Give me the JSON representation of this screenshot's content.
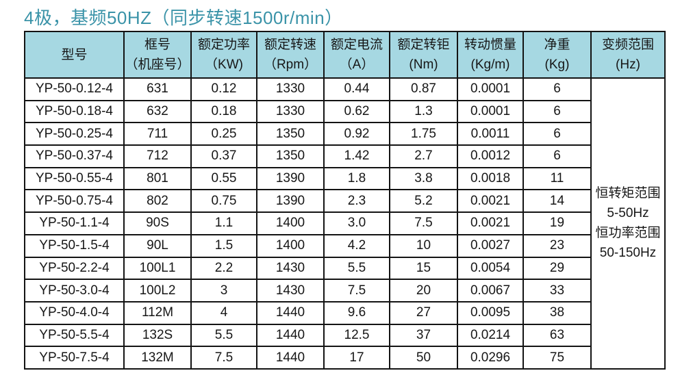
{
  "title": "4极，基频50HZ（同步转速1500r/min）",
  "colors": {
    "title_text": "#3a93a8",
    "header_bg": "#a6d8e2",
    "border": "#131313",
    "cell_text": "#161616"
  },
  "table": {
    "headers": [
      {
        "line1": "型号",
        "line2": ""
      },
      {
        "line1": "框号",
        "line2": "（机座号）"
      },
      {
        "line1": "额定功率",
        "line2": "（KW)"
      },
      {
        "line1": "额定转速",
        "line2": "（Rpm）"
      },
      {
        "line1": "额定电流",
        "line2": "（A）"
      },
      {
        "line1": "额定转钜",
        "line2": "(Nm)"
      },
      {
        "line1": "转动惯量",
        "line2": "(Kg/m)"
      },
      {
        "line1": "净重",
        "line2": "(Kg)"
      },
      {
        "line1": "变频范围",
        "line2": "(Hz)"
      }
    ],
    "rows": [
      [
        "YP-50-0.12-4",
        "631",
        "0.12",
        "1330",
        "0.44",
        "0.87",
        "0.0001",
        "6"
      ],
      [
        "YP-50-0.18-4",
        "632",
        "0.18",
        "1330",
        "0.62",
        "1.3",
        "0.0001",
        "6"
      ],
      [
        "YP-50-0.25-4",
        "711",
        "0.25",
        "1350",
        "0.92",
        "1.75",
        "0.0011",
        "6"
      ],
      [
        "YP-50-0.37-4",
        "712",
        "0.37",
        "1350",
        "1.42",
        "2.7",
        "0.0012",
        "6"
      ],
      [
        "YP-50-0.55-4",
        "801",
        "0.55",
        "1390",
        "1.8",
        "3.8",
        "0.0018",
        "11"
      ],
      [
        "YP-50-0.75-4",
        "802",
        "0.75",
        "1390",
        "2.3",
        "5.2",
        "0.0021",
        "14"
      ],
      [
        "YP-50-1.1-4",
        "90S",
        "1.1",
        "1400",
        "3.0",
        "7.5",
        "0.0021",
        "19"
      ],
      [
        "YP-50-1.5-4",
        "90L",
        "1.5",
        "1400",
        "4.2",
        "10",
        "0.0027",
        "23"
      ],
      [
        "YP-50-2.2-4",
        "100L1",
        "2.2",
        "1430",
        "5.5",
        "15",
        "0.0054",
        "29"
      ],
      [
        "YP-50-3.0-4",
        "100L2",
        "3",
        "1430",
        "7.5",
        "20",
        "0.0067",
        "33"
      ],
      [
        "YP-50-4.0-4",
        "112M",
        "4",
        "1440",
        "9.6",
        "27",
        "0.0095",
        "38"
      ],
      [
        "YP-50-5.5-4",
        "132S",
        "5.5",
        "1440",
        "12.5",
        "37",
        "0.0214",
        "63"
      ],
      [
        "YP-50-7.5-4",
        "132M",
        "7.5",
        "1440",
        "17",
        "50",
        "0.0296",
        "75"
      ]
    ],
    "freq_range": [
      "恒转矩范围",
      "5-50Hz",
      "恒功率范围",
      "50-150Hz"
    ]
  },
  "chart_data": {
    "type": "table",
    "title": "4极，基频50HZ（同步转速1500r/min）",
    "columns": [
      "型号",
      "框号（机座号）",
      "额定功率（KW)",
      "额定转速（Rpm）",
      "额定电流（A）",
      "额定转钜(Nm)",
      "转动惯量(Kg/m)",
      "净重(Kg)",
      "变频范围(Hz)"
    ],
    "rows": [
      [
        "YP-50-0.12-4",
        "631",
        0.12,
        1330,
        0.44,
        0.87,
        0.0001,
        6
      ],
      [
        "YP-50-0.18-4",
        "632",
        0.18,
        1330,
        0.62,
        1.3,
        0.0001,
        6
      ],
      [
        "YP-50-0.25-4",
        "711",
        0.25,
        1350,
        0.92,
        1.75,
        0.0011,
        6
      ],
      [
        "YP-50-0.37-4",
        "712",
        0.37,
        1350,
        1.42,
        2.7,
        0.0012,
        6
      ],
      [
        "YP-50-0.55-4",
        "801",
        0.55,
        1390,
        1.8,
        3.8,
        0.0018,
        11
      ],
      [
        "YP-50-0.75-4",
        "802",
        0.75,
        1390,
        2.3,
        5.2,
        0.0021,
        14
      ],
      [
        "YP-50-1.1-4",
        "90S",
        1.1,
        1400,
        3.0,
        7.5,
        0.0021,
        19
      ],
      [
        "YP-50-1.5-4",
        "90L",
        1.5,
        1400,
        4.2,
        10,
        0.0027,
        23
      ],
      [
        "YP-50-2.2-4",
        "100L1",
        2.2,
        1430,
        5.5,
        15,
        0.0054,
        29
      ],
      [
        "YP-50-3.0-4",
        "100L2",
        3,
        1430,
        7.5,
        20,
        0.0067,
        33
      ],
      [
        "YP-50-4.0-4",
        "112M",
        4,
        1440,
        9.6,
        27,
        0.0095,
        38
      ],
      [
        "YP-50-5.5-4",
        "132S",
        5.5,
        1440,
        12.5,
        37,
        0.0214,
        63
      ],
      [
        "YP-50-7.5-4",
        "132M",
        7.5,
        1440,
        17,
        50,
        0.0296,
        75
      ]
    ],
    "merged_last_column_value": "恒转矩范围 5-50Hz 恒功率范围 50-150Hz"
  }
}
